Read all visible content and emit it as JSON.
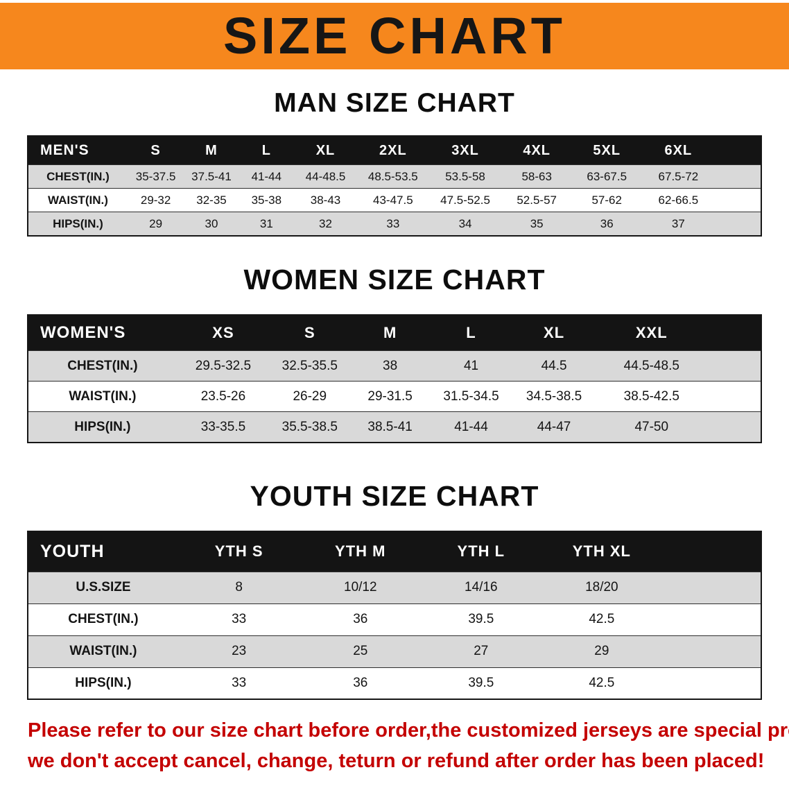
{
  "banner": {
    "title": "SIZE CHART"
  },
  "sections": [
    {
      "heading": "MAN SIZE CHART",
      "table": {
        "header": [
          "MEN'S",
          "S",
          "M",
          "L",
          "XL",
          "2XL",
          "3XL",
          "4XL",
          "5XL",
          "6XL"
        ],
        "rows": [
          [
            "CHEST(IN.)",
            "35-37.5",
            "37.5-41",
            "41-44",
            "44-48.5",
            "48.5-53.5",
            "53.5-58",
            "58-63",
            "63-67.5",
            "67.5-72"
          ],
          [
            "WAIST(IN.)",
            "29-32",
            "32-35",
            "35-38",
            "38-43",
            "43-47.5",
            "47.5-52.5",
            "52.5-57",
            "57-62",
            "62-66.5"
          ],
          [
            "HIPS(IN.)",
            "29",
            "30",
            "31",
            "32",
            "33",
            "34",
            "35",
            "36",
            "37"
          ]
        ]
      }
    },
    {
      "heading": "WOMEN SIZE CHART",
      "table": {
        "header": [
          "WOMEN'S",
          "XS",
          "S",
          "M",
          "L",
          "XL",
          "XXL"
        ],
        "rows": [
          [
            "CHEST(IN.)",
            "29.5-32.5",
            "32.5-35.5",
            "38",
            "41",
            "44.5",
            "44.5-48.5"
          ],
          [
            "WAIST(IN.)",
            "23.5-26",
            "26-29",
            "29-31.5",
            "31.5-34.5",
            "34.5-38.5",
            "38.5-42.5"
          ],
          [
            "HIPS(IN.)",
            "33-35.5",
            "35.5-38.5",
            "38.5-41",
            "41-44",
            "44-47",
            "47-50"
          ]
        ]
      }
    },
    {
      "heading": "YOUTH SIZE CHART",
      "table": {
        "header": [
          "YOUTH",
          "YTH S",
          "YTH M",
          "YTH L",
          "YTH XL"
        ],
        "rows": [
          [
            "U.S.SIZE",
            "8",
            "10/12",
            "14/16",
            "18/20"
          ],
          [
            "CHEST(IN.)",
            "33",
            "36",
            "39.5",
            "42.5"
          ],
          [
            "WAIST(IN.)",
            "23",
            "25",
            "27",
            "29"
          ],
          [
            "HIPS(IN.)",
            "33",
            "36",
            "39.5",
            "42.5"
          ]
        ]
      }
    }
  ],
  "notice": {
    "line1": "Please refer to our size chart before order,the customized jerseys are special products,",
    "line2": "we don't accept cancel, change, teturn or refund after order has been placed!"
  },
  "colors": {
    "banner_bg": "#F6871D",
    "table_header_bg": "#141414",
    "row_alt_bg": "#D9D9D9",
    "notice_text": "#C40000"
  }
}
